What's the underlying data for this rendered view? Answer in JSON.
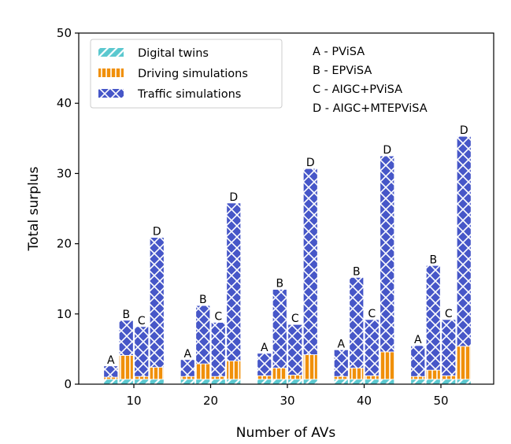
{
  "chart_data": {
    "type": "bar",
    "stacked": true,
    "grouped": true,
    "xlabel": "Number of AVs",
    "ylabel": "Total surplus",
    "categories": [
      "10",
      "20",
      "30",
      "40",
      "50"
    ],
    "methods": [
      "A",
      "B",
      "C",
      "D"
    ],
    "ylim": [
      0,
      50
    ],
    "yticks": [
      0,
      10,
      20,
      30,
      40,
      50
    ],
    "grid": false,
    "legend_position": "top-left",
    "series": [
      {
        "name": "Digital twins",
        "color": "#5bc8cf",
        "pattern": "diagonal-hatch",
        "values": [
          [
            0.7,
            0.7,
            0.7,
            0.7
          ],
          [
            0.7,
            0.7,
            0.7,
            0.7
          ],
          [
            0.7,
            0.7,
            0.7,
            0.7
          ],
          [
            0.7,
            0.7,
            0.7,
            0.7
          ],
          [
            0.7,
            0.7,
            0.7,
            0.7
          ]
        ]
      },
      {
        "name": "Driving simulations",
        "color": "#f0900a",
        "pattern": "vertical-hatch",
        "values": [
          [
            0.3,
            3.4,
            0.4,
            1.7
          ],
          [
            0.4,
            2.2,
            0.4,
            2.6
          ],
          [
            0.5,
            1.6,
            0.6,
            3.5
          ],
          [
            0.4,
            1.6,
            0.5,
            3.9
          ],
          [
            0.4,
            1.3,
            0.5,
            4.7
          ]
        ]
      },
      {
        "name": "Traffic simulations",
        "color": "#4757c8",
        "pattern": "cross-hatch",
        "values": [
          [
            1.6,
            5.0,
            7.1,
            18.5
          ],
          [
            2.4,
            8.3,
            7.7,
            22.5
          ],
          [
            3.2,
            11.2,
            7.2,
            26.5
          ],
          [
            3.8,
            12.9,
            8.0,
            27.9
          ],
          [
            4.4,
            14.9,
            8.0,
            29.9
          ]
        ]
      }
    ],
    "annotations": [
      "A - PViSA",
      "B - EPViSA",
      "C - AIGC+PViSA",
      "D - AIGC+MTEPViSA"
    ]
  }
}
